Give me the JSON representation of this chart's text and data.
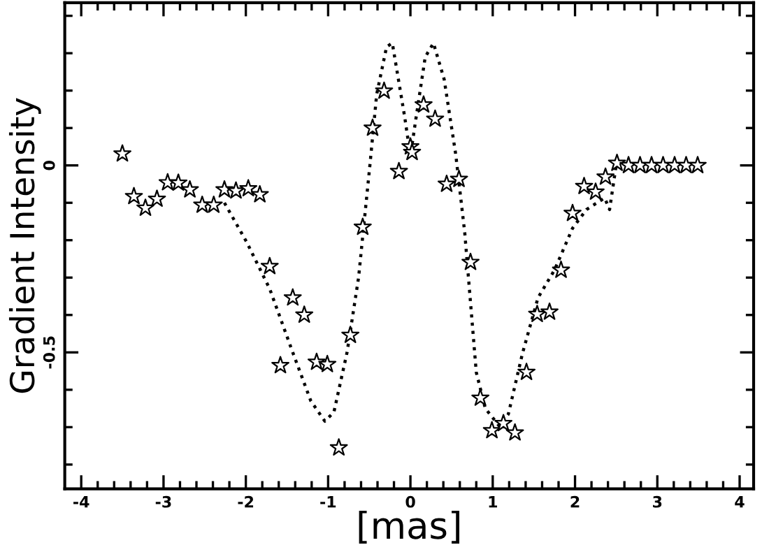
{
  "chart_data": {
    "type": "scatter",
    "xlabel": "[mas]",
    "ylabel": "Gradient Intensity",
    "xlim": [
      -4.2,
      4.17
    ],
    "ylim": [
      -0.865,
      0.435
    ],
    "xticks": [
      -4,
      {
        "value": -3.8,
        "label": null
      },
      {
        "value": -3.6,
        "label": null
      },
      {
        "value": -3.4,
        "label": null
      },
      {
        "value": -3.2,
        "label": null
      },
      -3,
      {
        "value": -2.8,
        "label": null
      },
      {
        "value": -2.6,
        "label": null
      },
      {
        "value": -2.4,
        "label": null
      },
      {
        "value": -2.2,
        "label": null
      },
      -2,
      {
        "value": -1.8,
        "label": null
      },
      {
        "value": -1.6,
        "label": null
      },
      {
        "value": -1.4,
        "label": null
      },
      {
        "value": -1.2,
        "label": null
      },
      -1,
      {
        "value": -0.8,
        "label": null
      },
      {
        "value": -0.6,
        "label": null
      },
      {
        "value": -0.4,
        "label": null
      },
      {
        "value": -0.2,
        "label": null
      },
      0,
      {
        "value": 0.2,
        "label": null
      },
      {
        "value": 0.4,
        "label": null
      },
      {
        "value": 0.6,
        "label": null
      },
      {
        "value": 0.8,
        "label": null
      },
      1,
      {
        "value": 1.2,
        "label": null
      },
      {
        "value": 1.4,
        "label": null
      },
      {
        "value": 1.6,
        "label": null
      },
      {
        "value": 1.8,
        "label": null
      },
      2,
      {
        "value": 2.2,
        "label": null
      },
      {
        "value": 2.4,
        "label": null
      },
      {
        "value": 2.6,
        "label": null
      },
      {
        "value": 2.8,
        "label": null
      },
      3,
      {
        "value": 3.2,
        "label": null
      },
      {
        "value": 3.4,
        "label": null
      },
      {
        "value": 3.6,
        "label": null
      },
      {
        "value": 3.8,
        "label": null
      },
      4
    ],
    "yticks": [
      {
        "value": -0.8,
        "label": null
      },
      {
        "value": -0.7,
        "label": null
      },
      {
        "value": -0.6,
        "label": null
      },
      {
        "value": -0.5,
        "label": "-0.5"
      },
      {
        "value": -0.4,
        "label": null
      },
      {
        "value": -0.3,
        "label": null
      },
      {
        "value": -0.2,
        "label": null
      },
      {
        "value": -0.1,
        "label": null
      },
      {
        "value": 0,
        "label": "0"
      },
      {
        "value": 0.1,
        "label": null
      },
      {
        "value": 0.2,
        "label": null
      },
      {
        "value": 0.3,
        "label": null
      },
      {
        "value": 0.4,
        "label": null
      }
    ],
    "grid": false,
    "legend": false,
    "series": [
      {
        "color": "#000000",
        "marker": "star",
        "x": [
          -3.5,
          -3.36,
          -3.22,
          -3.08,
          -2.95,
          -2.82,
          -2.68,
          -2.53,
          -2.39,
          -2.26,
          -2.12,
          -1.97,
          -1.83,
          -1.71,
          -1.58,
          -1.43,
          -1.29,
          -1.14,
          -1.01,
          -0.87,
          -0.73,
          -0.58,
          -0.46,
          -0.32,
          -0.14,
          0.0,
          0.02,
          0.16,
          0.3,
          0.44,
          0.59,
          0.73,
          0.85,
          0.99,
          1.13,
          1.27,
          1.41,
          1.54,
          1.69,
          1.83,
          1.97,
          2.11,
          2.25,
          2.37,
          2.51,
          2.65,
          2.79,
          2.93,
          3.07,
          3.21,
          3.35,
          3.49
        ],
        "values": [
          0.031,
          -0.083,
          -0.114,
          -0.09,
          -0.046,
          -0.047,
          -0.065,
          -0.106,
          -0.106,
          -0.065,
          -0.068,
          -0.062,
          -0.078,
          -0.27,
          -0.535,
          -0.354,
          -0.4,
          -0.526,
          -0.532,
          -0.755,
          -0.454,
          -0.165,
          0.1,
          0.199,
          -0.016,
          0.05,
          0.035,
          0.162,
          0.124,
          -0.05,
          -0.037,
          -0.259,
          -0.622,
          -0.709,
          -0.69,
          -0.715,
          -0.553,
          -0.398,
          -0.392,
          -0.28,
          -0.128,
          -0.056,
          -0.071,
          -0.031,
          0.006,
          0.0,
          0.0,
          0.0,
          0.0,
          0.0,
          0.0,
          0.0
        ]
      },
      {
        "type": "line",
        "color": "#000000",
        "marker": "none",
        "line_style": "dotted",
        "x": [
          -2.26,
          -1.99,
          -1.71,
          -1.43,
          -1.21,
          -1.04,
          -0.93,
          -0.77,
          -0.63,
          -0.49,
          -0.41,
          -0.29,
          -0.22,
          -0.07,
          0.0,
          0.07,
          0.18,
          0.28,
          0.41,
          0.55,
          0.66,
          0.8,
          0.91,
          1.08,
          1.19,
          1.36,
          1.55,
          1.75,
          1.97,
          2.14,
          2.36,
          2.42,
          2.47,
          2.5
        ],
        "values": [
          -0.1,
          -0.205,
          -0.33,
          -0.5,
          -0.63,
          -0.684,
          -0.66,
          -0.5,
          -0.3,
          0.006,
          0.19,
          0.317,
          0.327,
          0.13,
          0.025,
          0.13,
          0.29,
          0.327,
          0.23,
          0.03,
          -0.18,
          -0.553,
          -0.65,
          -0.697,
          -0.665,
          -0.504,
          -0.354,
          -0.28,
          -0.168,
          -0.118,
          -0.087,
          -0.118,
          -0.044,
          0.0
        ]
      }
    ]
  }
}
